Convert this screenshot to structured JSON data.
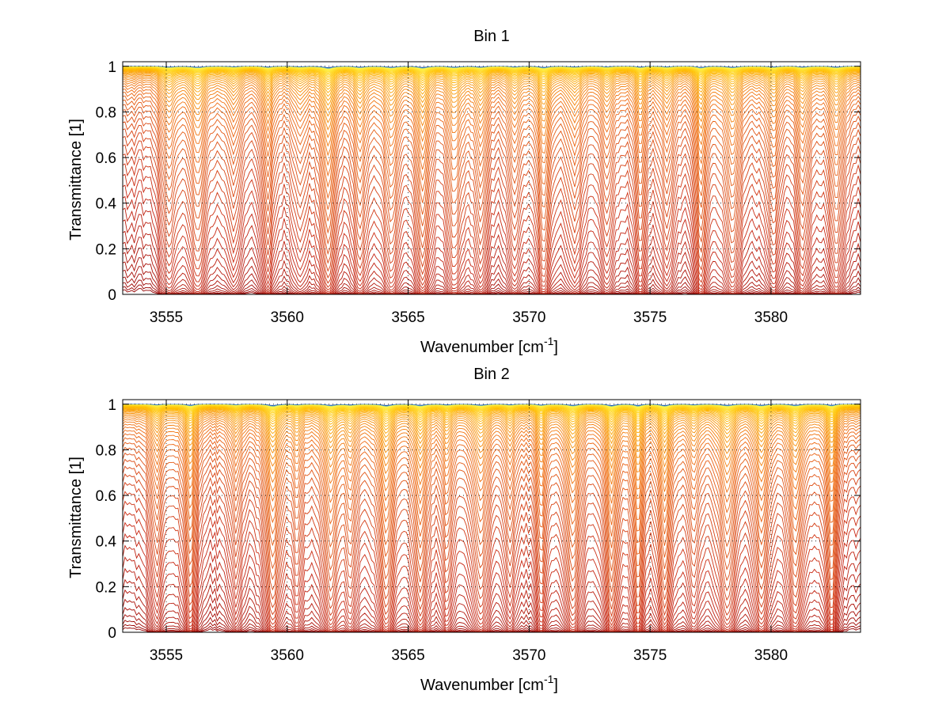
{
  "chart_data": [
    {
      "type": "line",
      "title": "Bin 1",
      "xlabel": "Wavenumber [cm",
      "xlabel_sup": "-1",
      "xlabel_end": "]",
      "ylabel": "Transmittance [1]",
      "xlim": [
        3553.2,
        3583.7
      ],
      "ylim": [
        0,
        1.02
      ],
      "xticks": [
        3555,
        3560,
        3565,
        3570,
        3575,
        3580
      ],
      "xtick_labels": [
        "3555",
        "3560",
        "3565",
        "3570",
        "3575",
        "3580"
      ],
      "yticks": [
        0,
        0.2,
        0.4,
        0.6,
        0.8,
        1
      ],
      "ytick_labels": [
        "0",
        "0.2",
        "0.4",
        "0.6",
        "0.8",
        "1"
      ],
      "grid": "dotted",
      "legend": "none",
      "series_count": 60,
      "colormap": "blue-to-yellow-to-dark-red (many curves, increasing optical depth)",
      "absorption_lines": [
        3555.1,
        3556.3,
        3557.8,
        3559.2,
        3560.5,
        3561.7,
        3563.0,
        3564.3,
        3565.6,
        3566.9,
        3568.0,
        3569.4,
        3570.6,
        3571.9,
        3573.2,
        3574.6,
        3575.7,
        3577.1,
        3578.4,
        3580.1,
        3581.3,
        3582.7
      ],
      "seed": 7
    },
    {
      "type": "line",
      "title": "Bin 2",
      "xlabel": "Wavenumber [cm",
      "xlabel_sup": "-1",
      "xlabel_end": "]",
      "ylabel": "Transmittance [1]",
      "xlim": [
        3553.2,
        3583.7
      ],
      "ylim": [
        0,
        1.02
      ],
      "xticks": [
        3555,
        3560,
        3565,
        3570,
        3575,
        3580
      ],
      "xtick_labels": [
        "3555",
        "3560",
        "3565",
        "3570",
        "3575",
        "3580"
      ],
      "yticks": [
        0,
        0.2,
        0.4,
        0.6,
        0.8,
        1
      ],
      "ytick_labels": [
        "0",
        "0.2",
        "0.4",
        "0.6",
        "0.8",
        "1"
      ],
      "grid": "dotted",
      "legend": "none",
      "series_count": 60,
      "colormap": "blue-to-yellow-to-dark-red (many curves, increasing optical depth)",
      "absorption_lines": [
        3554.6,
        3556.0,
        3557.9,
        3559.4,
        3560.4,
        3561.8,
        3562.6,
        3564.1,
        3565.5,
        3566.6,
        3568.0,
        3569.2,
        3570.5,
        3571.8,
        3573.4,
        3574.5,
        3575.6,
        3576.8,
        3578.2,
        3579.6,
        3581.0,
        3582.5
      ],
      "seed": 13
    }
  ]
}
